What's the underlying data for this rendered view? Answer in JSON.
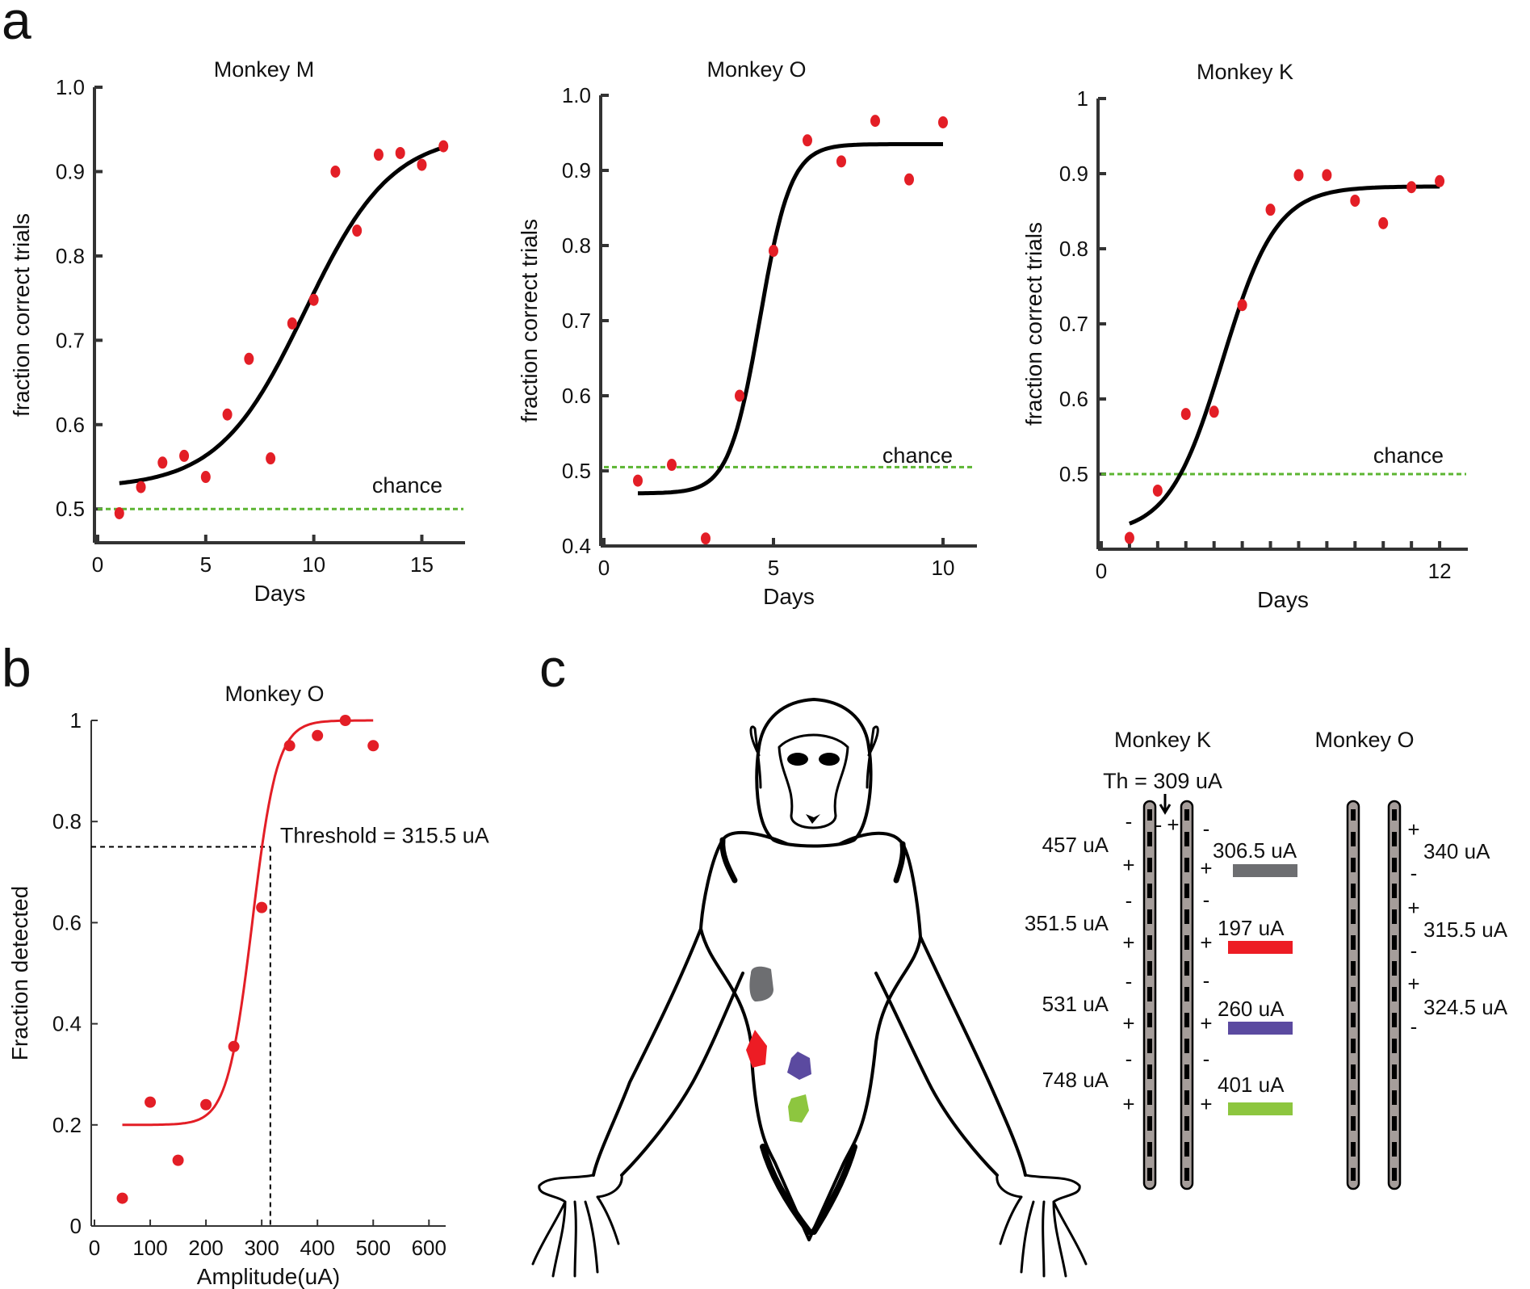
{
  "panel_letters": {
    "a": "a",
    "b": "b",
    "c": "c"
  },
  "colors": {
    "fit_line": "#000000",
    "data_points": "#e31e26",
    "chance_line": "#5cb532",
    "psychometric_fit": "#e31e26",
    "site_gray": "#6d6e71",
    "site_red": "#ed1c24",
    "site_purple": "#5b4aa0",
    "site_green": "#8dc63f"
  },
  "chart_data": [
    {
      "type": "scatter",
      "title": "Monkey M",
      "xlabel": "Days",
      "ylabel": "fraction correct trials",
      "xlim": [
        0,
        17
      ],
      "ylim": [
        0.46,
        1.0
      ],
      "xticks": [
        0,
        5,
        10,
        15
      ],
      "xtick_labels": [
        "0",
        "5",
        "10",
        "15"
      ],
      "yticks": [
        0.5,
        0.6,
        0.7,
        0.8,
        0.9,
        1.0
      ],
      "ytick_labels": [
        "0.5",
        "0.6",
        "0.7",
        "0.8",
        "0.9",
        "1.0"
      ],
      "annotation": "chance",
      "chance_level": 0.5,
      "points": {
        "x": [
          1,
          2,
          3,
          4,
          5,
          6,
          7,
          8,
          9,
          10,
          11,
          12,
          13,
          14,
          15,
          16
        ],
        "y": [
          0.495,
          0.526,
          0.555,
          0.563,
          0.538,
          0.612,
          0.678,
          0.56,
          0.72,
          0.748,
          0.9,
          0.83,
          0.92,
          0.922,
          0.908,
          0.93
        ]
      },
      "fit": {
        "kind": "logistic",
        "lower": 0.525,
        "upper": 0.945,
        "midpoint": 9.6,
        "slope": 0.5,
        "x_range": [
          1,
          16
        ]
      }
    },
    {
      "type": "scatter",
      "title": "Monkey O",
      "xlabel": "Days",
      "ylabel": "fraction correct trials",
      "xlim": [
        0,
        11
      ],
      "ylim": [
        0.4,
        1.0
      ],
      "xticks": [
        0,
        5,
        10
      ],
      "xtick_labels": [
        "0",
        "5",
        "10"
      ],
      "yticks": [
        0.4,
        0.5,
        0.6,
        0.7,
        0.8,
        0.9,
        1.0
      ],
      "ytick_labels": [
        "0.4",
        "0.5",
        "0.6",
        "0.7",
        "0.8",
        "0.9",
        "1.0"
      ],
      "annotation": "chance",
      "chance_level": 0.505,
      "points": {
        "x": [
          1,
          2,
          3,
          4,
          5,
          6,
          7,
          8,
          9,
          10
        ],
        "y": [
          0.487,
          0.508,
          0.41,
          0.6,
          0.793,
          0.94,
          0.912,
          0.966,
          0.888,
          0.964
        ]
      },
      "fit": {
        "kind": "logistic",
        "lower": 0.47,
        "upper": 0.935,
        "midpoint": 4.6,
        "slope": 2.2,
        "x_range": [
          1,
          10
        ]
      }
    },
    {
      "type": "scatter",
      "title": "Monkey K",
      "xlabel": "Days",
      "ylabel": "fraction correct trials",
      "xlim": [
        0,
        13
      ],
      "ylim": [
        0.4,
        1.0
      ],
      "xticks": [
        0,
        1,
        2,
        3,
        4,
        5,
        6,
        7,
        8,
        9,
        10,
        11,
        12
      ],
      "xtick_labels": [
        "0",
        "",
        "",
        "",
        "",
        "",
        "",
        "",
        "",
        "",
        "",
        "",
        "12"
      ],
      "yticks": [
        0.5,
        0.6,
        0.7,
        0.8,
        0.9,
        1.0
      ],
      "ytick_labels": [
        "0.5",
        "0.6",
        "0.7",
        "0.8",
        "0.9",
        "1"
      ],
      "annotation": "chance",
      "chance_level": 0.5,
      "points": {
        "x": [
          1,
          2,
          3,
          4,
          5,
          6,
          7,
          8,
          9,
          10,
          11,
          12
        ],
        "y": [
          0.415,
          0.478,
          0.58,
          0.583,
          0.725,
          0.852,
          0.898,
          0.898,
          0.864,
          0.834,
          0.882,
          0.89
        ]
      },
      "fit": {
        "kind": "logistic",
        "lower": 0.42,
        "upper": 0.883,
        "midpoint": 4.3,
        "slope": 1.05,
        "x_range": [
          1,
          12
        ]
      }
    },
    {
      "type": "scatter",
      "title": "Monkey O",
      "xlabel": "Amplitude(uA)",
      "ylabel": "Fraction detected",
      "xlim": [
        0,
        630
      ],
      "ylim": [
        0,
        1
      ],
      "xticks": [
        0,
        100,
        200,
        300,
        400,
        500,
        600
      ],
      "xtick_labels": [
        "0",
        "100",
        "200",
        "300",
        "400",
        "500",
        "600"
      ],
      "yticks": [
        0,
        0.2,
        0.4,
        0.6,
        0.8,
        1
      ],
      "ytick_labels": [
        "0",
        "0.2",
        "0.4",
        "0.6",
        "0.8",
        "1"
      ],
      "annotation": "Threshold = 315.5 uA",
      "threshold": {
        "x": 315.5,
        "y": 0.75
      },
      "points": {
        "x": [
          50,
          100,
          150,
          200,
          250,
          300,
          350,
          400,
          450,
          500
        ],
        "y": [
          0.055,
          0.245,
          0.13,
          0.24,
          0.355,
          0.63,
          0.95,
          0.97,
          1.0,
          0.95
        ]
      },
      "fit": {
        "kind": "logistic",
        "lower": 0.2,
        "upper": 1.0,
        "midpoint": 283,
        "slope": 0.045,
        "x_range": [
          50,
          500
        ]
      }
    }
  ],
  "panel_c": {
    "monkey_k_title": "Monkey K",
    "monkey_o_title": "Monkey O",
    "threshold_label": "Th = 309 uA",
    "left_amplitudes": [
      "457 uA",
      "351.5 uA",
      "531 uA",
      "748 uA"
    ],
    "right_amplitudes": [
      "306.5 uA",
      "197 uA",
      "260 uA",
      "401 uA"
    ],
    "monkey_o_amplitudes": [
      "340 uA",
      "315.5 uA",
      "324.5 uA"
    ],
    "minus_sign": "-",
    "plus_sign": "+",
    "legend_colors": [
      "#6d6e71",
      "#ed1c24",
      "#5b4aa0",
      "#8dc63f"
    ]
  }
}
